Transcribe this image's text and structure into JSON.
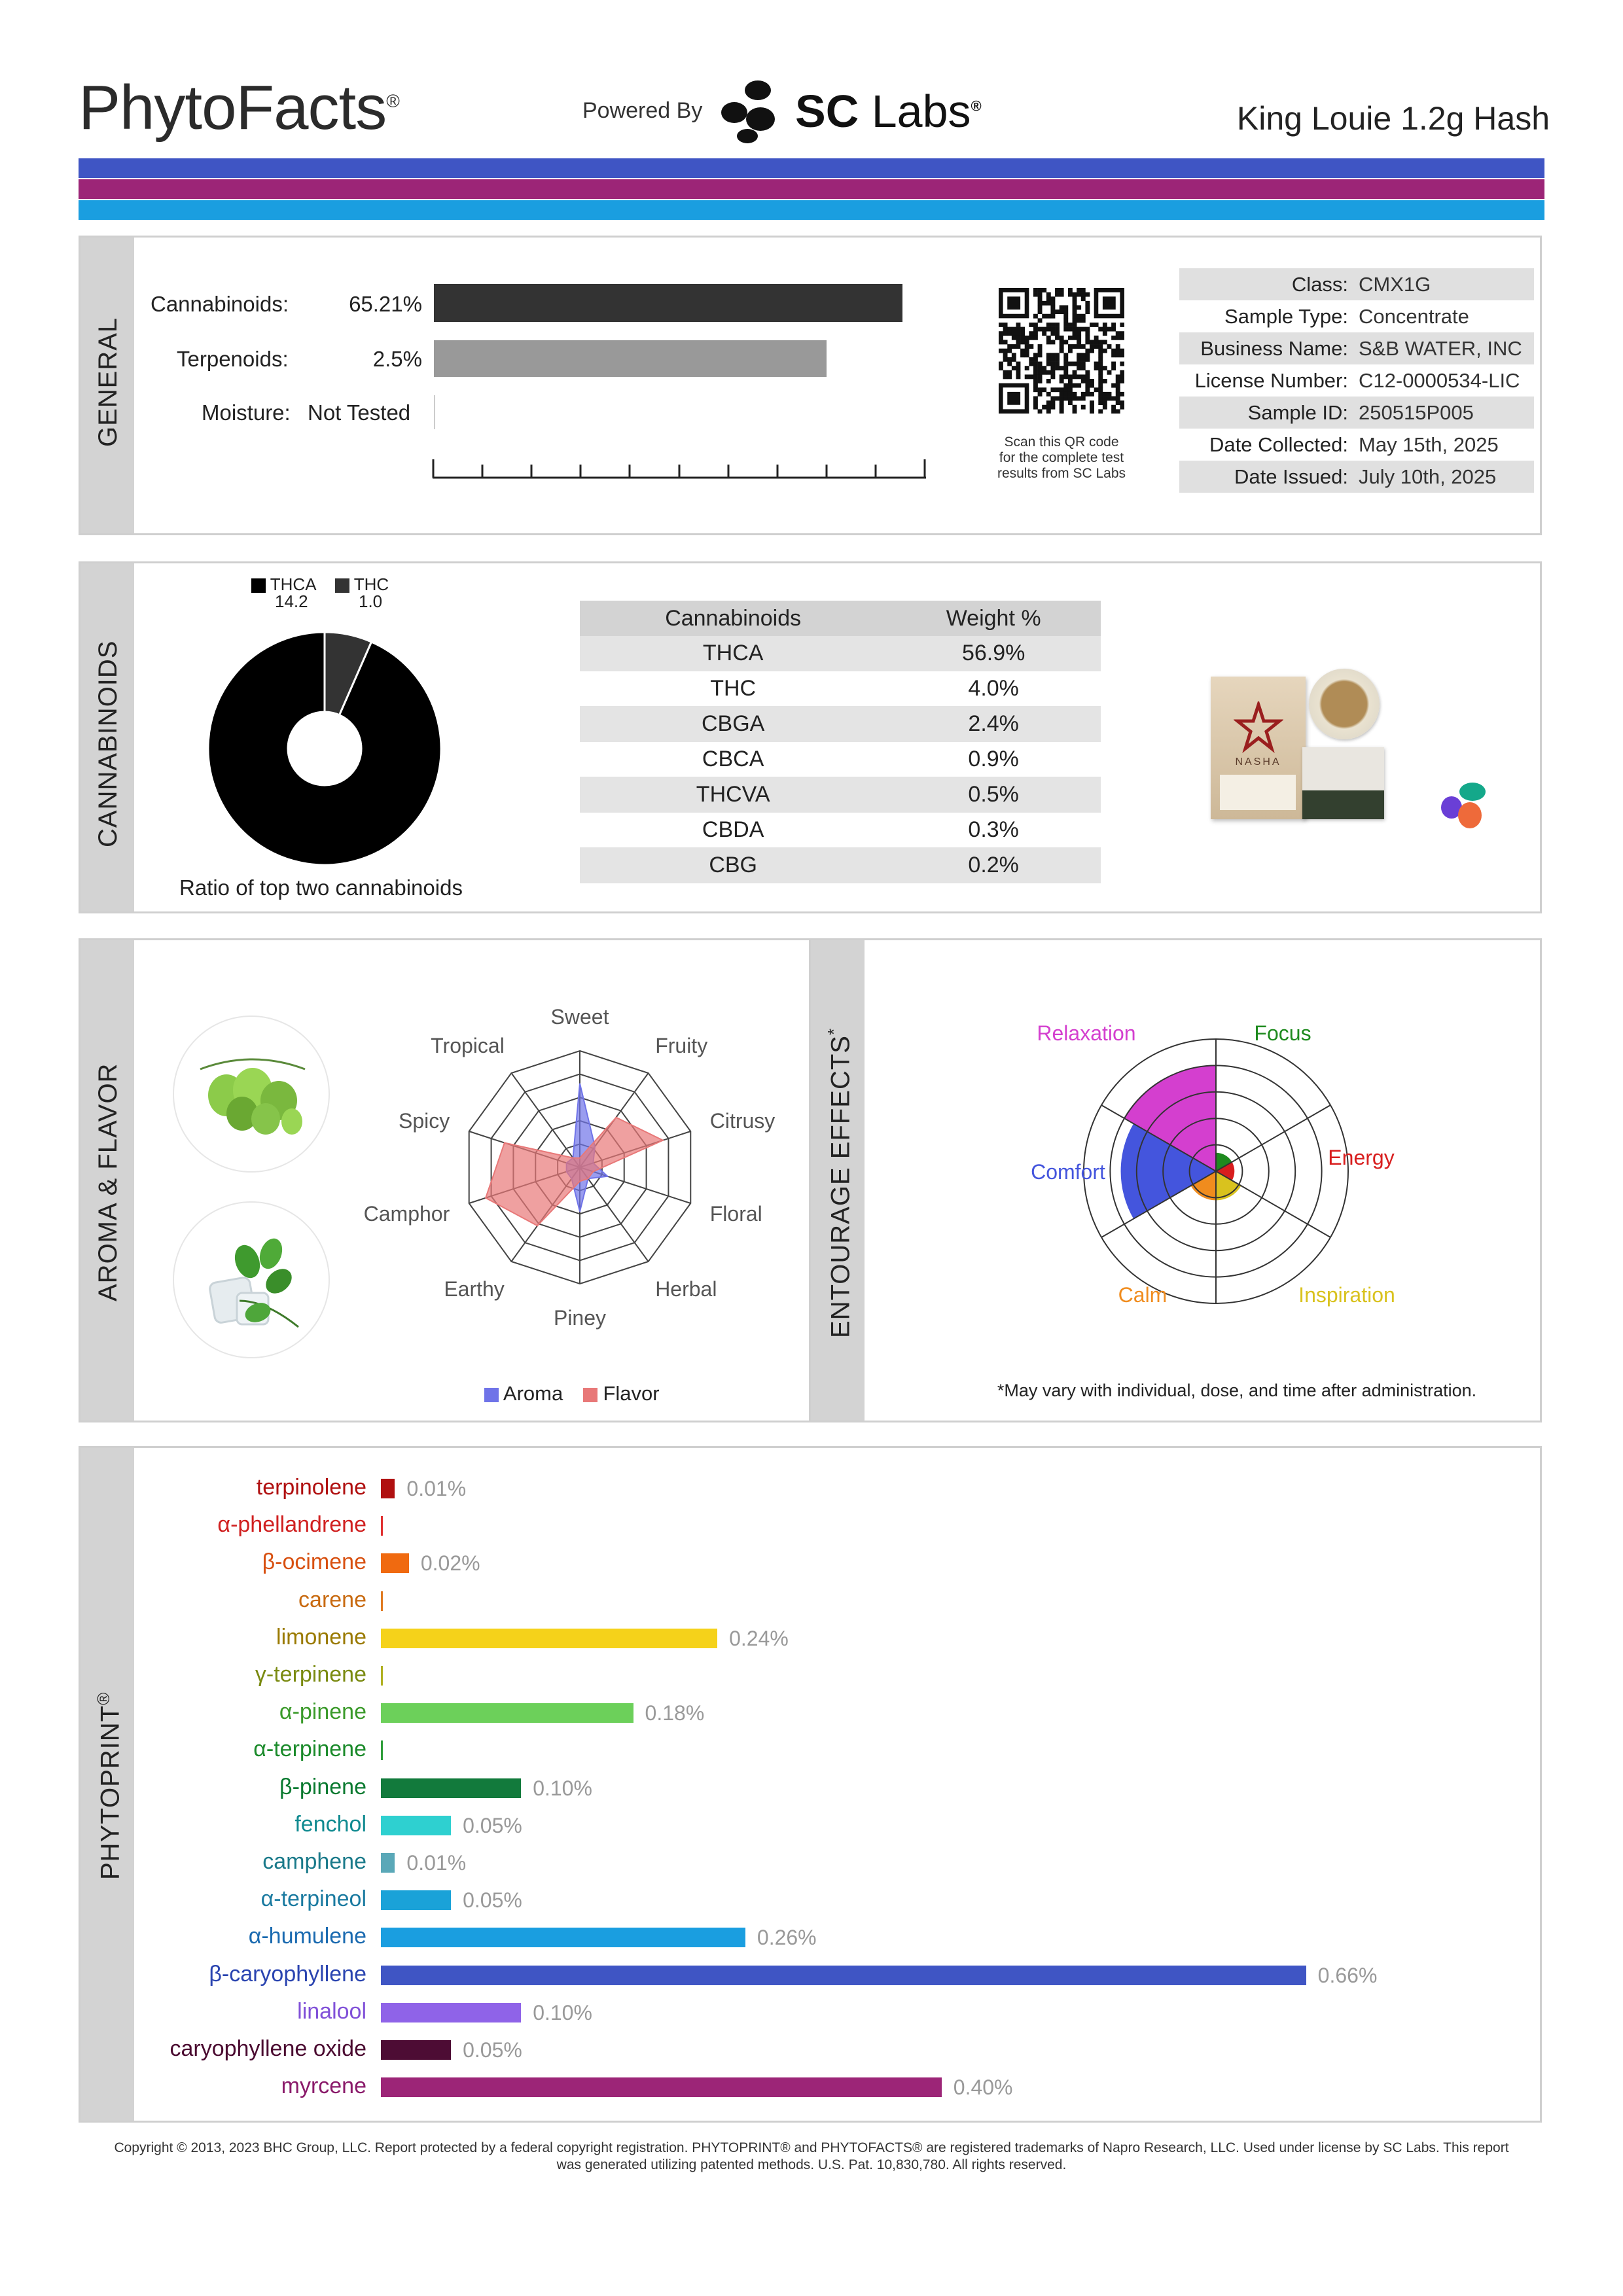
{
  "header": {
    "brand": "PhytoFacts",
    "brand_mark": "®",
    "powered_by": "Powered By",
    "lab_name_bold": "SC",
    "lab_name_light": "Labs",
    "lab_mark": "®",
    "product_name": "King Louie 1.2g Hash"
  },
  "stripes": [
    "#3f55c4",
    "#9c2577",
    "#1a9ee0"
  ],
  "general": {
    "section_label": "GENERAL",
    "cannabinoids_label": "Cannabinoids:",
    "cannabinoids_value": "65.21%",
    "cannabinoids_fraction": 0.9,
    "terpenoids_label": "Terpenoids:",
    "terpenoids_value": "2.5%",
    "terpenoids_fraction": 0.79,
    "moisture_label": "Moisture:",
    "moisture_value": "Not Tested",
    "qr_caption": [
      "Scan this QR code",
      "for the complete test",
      "results from SC Labs"
    ],
    "info": [
      {
        "key": "Class:",
        "value": "CMX1G"
      },
      {
        "key": "Sample Type:",
        "value": "Concentrate"
      },
      {
        "key": "Business Name:",
        "value": "S&B WATER, INC"
      },
      {
        "key": "License Number:",
        "value": "C12-0000534-LIC"
      },
      {
        "key": "Sample ID:",
        "value": "250515P005"
      },
      {
        "key": "Date Collected:",
        "value": "May 15th, 2025"
      },
      {
        "key": "Date Issued:",
        "value": "July 10th, 2025"
      }
    ]
  },
  "cannabinoids": {
    "section_label": "CANNABINOIDS",
    "legend": [
      {
        "name": "THCA",
        "value": "14.2",
        "color": "#000000"
      },
      {
        "name": "THC",
        "value": "1.0",
        "color": "#333333"
      }
    ],
    "donut_caption": "Ratio of top two cannabinoids",
    "table_headers": [
      "Cannabinoids",
      "Weight %"
    ],
    "table_rows": [
      [
        "THCA",
        "56.9%"
      ],
      [
        "THC",
        "4.0%"
      ],
      [
        "CBGA",
        "2.4%"
      ],
      [
        "CBCA",
        "0.9%"
      ],
      [
        "THCVA",
        "0.5%"
      ],
      [
        "CBDA",
        "0.3%"
      ],
      [
        "CBG",
        "0.2%"
      ]
    ],
    "product_image_text": "NASHA"
  },
  "aroma": {
    "section_label": "AROMA & FLAVOR",
    "legend": [
      {
        "name": "Aroma",
        "color": "#6f73e8"
      },
      {
        "name": "Flavor",
        "color": "#e87878"
      }
    ]
  },
  "entourage": {
    "section_label": "ENTOURAGE EFFECTS",
    "section_mark": "*",
    "footnote": "*May vary with individual, dose, and time after administration."
  },
  "phytoprint": {
    "section_label": "PHYTOPRINT",
    "section_mark": "®"
  },
  "chart_data": [
    {
      "type": "pie",
      "subtype": "donut",
      "title": "Ratio of top two cannabinoids",
      "categories": [
        "THCA",
        "THC"
      ],
      "values": [
        14.2,
        1.0
      ],
      "colors": [
        "#000000",
        "#333333"
      ]
    },
    {
      "type": "radar",
      "categories": [
        "Sweet",
        "Fruity",
        "Citrusy",
        "Floral",
        "Herbal",
        "Piney",
        "Earthy",
        "Camphor",
        "Spicy",
        "Tropical"
      ],
      "series": [
        {
          "name": "Aroma",
          "values": [
            0.72,
            0.22,
            0.12,
            0.25,
            0.12,
            0.38,
            0.12,
            0.12,
            0.12,
            0.1
          ],
          "color": "#6f73e8"
        },
        {
          "name": "Flavor",
          "values": [
            0.08,
            0.53,
            0.75,
            0.12,
            0.12,
            0.12,
            0.62,
            0.85,
            0.68,
            0.1
          ],
          "color": "#e87878"
        }
      ],
      "rmax": 1
    },
    {
      "type": "polar-area",
      "categories": [
        "Focus",
        "Energy",
        "Inspiration",
        "Calm",
        "Comfort",
        "Relaxation"
      ],
      "values": [
        0.14,
        0.14,
        0.22,
        0.22,
        0.72,
        0.8
      ],
      "colors": [
        "#1e8a1e",
        "#d81e1e",
        "#d9c21e",
        "#f08c1e",
        "#4455dd",
        "#d43fcf"
      ],
      "rmax": 1
    },
    {
      "type": "bar",
      "orientation": "horizontal",
      "unit": "%",
      "xlim": [
        0,
        0.7
      ],
      "categories": [
        "terpinolene",
        "α-phellandrene",
        "β-ocimene",
        "carene",
        "limonene",
        "γ-terpinene",
        "α-pinene",
        "α-terpinene",
        "β-pinene",
        "fenchol",
        "camphene",
        "α-terpineol",
        "α-humulene",
        "β-caryophyllene",
        "linalool",
        "caryophyllene oxide",
        "myrcene"
      ],
      "values": [
        0.01,
        0.0,
        0.02,
        0.0,
        0.24,
        0.0,
        0.18,
        0.0,
        0.1,
        0.05,
        0.01,
        0.05,
        0.26,
        0.66,
        0.1,
        0.05,
        0.4
      ],
      "value_labels": [
        "0.01%",
        "",
        "0.02%",
        "",
        "0.24%",
        "",
        "0.18%",
        "",
        "0.10%",
        "0.05%",
        "0.01%",
        "0.05%",
        "0.26%",
        "0.66%",
        "0.10%",
        "0.05%",
        "0.40%"
      ],
      "colors": [
        "#b01010",
        "#e03030",
        "#f06a10",
        "#e07a20",
        "#f5d21a",
        "#b0b020",
        "#6cd05a",
        "#2e9e3a",
        "#127a3c",
        "#2ed0d0",
        "#5aa8b8",
        "#1aa2d8",
        "#1a9ee0",
        "#3f55c4",
        "#8f63e8",
        "#4d0c34",
        "#9c2577"
      ],
      "label_colors": [
        "#b01010",
        "#d02020",
        "#d85010",
        "#c86a10",
        "#9a7a00",
        "#7a8a10",
        "#3a9a2a",
        "#1a8a2a",
        "#0a7a30",
        "#108a90",
        "#1a7a8a",
        "#1a7aa0",
        "#1a6ab0",
        "#2a44b0",
        "#8050d8",
        "#4a0a30",
        "#8a1a6a"
      ]
    }
  ],
  "footer": {
    "line1": "Copyright © 2013, 2023 BHC Group, LLC. Report protected by a federal copyright registration. PHYTOPRINT® and PHYTOFACTS® are registered trademarks of Napro Research, LLC. Used under license by SC Labs. This report",
    "line2": "was generated utilizing patented methods. U.S. Pat. 10,830,780. All rights reserved."
  }
}
